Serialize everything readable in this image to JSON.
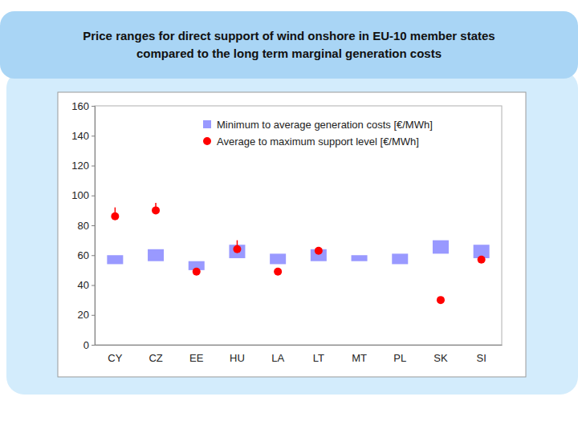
{
  "chart_data": {
    "type": "range",
    "title": "Price ranges for direct support of wind onshore in EU-10 member states\ncompared to the long term marginal generation costs",
    "categories": [
      "CY",
      "CZ",
      "EE",
      "HU",
      "LA",
      "LT",
      "MT",
      "PL",
      "SK",
      "SI"
    ],
    "series": [
      {
        "name": "Minimum to average generation costs [€/MWh]",
        "type": "bar",
        "color": "#9999ff",
        "min": [
          54,
          56,
          50,
          58,
          54,
          56,
          56,
          54,
          61,
          58
        ],
        "values": [
          60,
          64,
          56,
          67,
          61,
          64,
          60,
          61,
          70,
          67
        ]
      },
      {
        "name": "Average to maximum support level [€/MWh]",
        "type": "scatter",
        "marker": "circle",
        "color": "#ff0000",
        "values": [
          86,
          90,
          49,
          64,
          49,
          63,
          null,
          null,
          30,
          57
        ],
        "max": [
          92,
          95,
          null,
          70,
          null,
          null,
          null,
          null,
          null,
          null
        ]
      }
    ],
    "ylim": [
      0,
      160
    ],
    "yticks": [
      0,
      20,
      40,
      60,
      80,
      100,
      120,
      140,
      160
    ],
    "grid": false,
    "legend": "top-right"
  }
}
